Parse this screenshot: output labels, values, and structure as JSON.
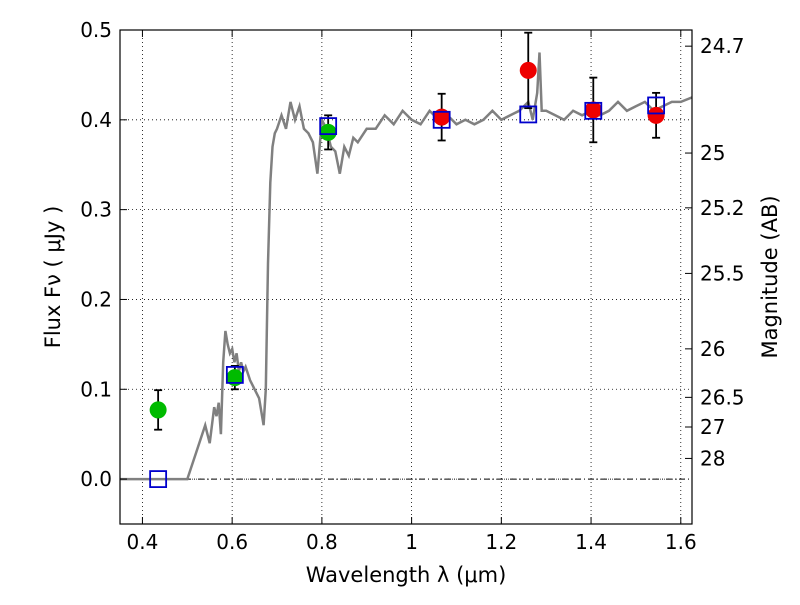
{
  "chart_data": {
    "type": "scatter",
    "xlabel": "Wavelength  λ (μm)",
    "ylabel": "Flux  Fν  ( μJy )",
    "ylabel_right": "Magnitude (AB)",
    "xlim": [
      0.35,
      1.625
    ],
    "ylim": [
      -0.05,
      0.5
    ],
    "x_ticks": [
      0.4,
      0.6,
      0.8,
      1.0,
      1.2,
      1.4,
      1.6
    ],
    "x_tick_labels": [
      "0.4",
      "0.6",
      "0.8",
      "1",
      "1.2",
      "1.4",
      "1.6"
    ],
    "y_ticks": [
      0.0,
      0.1,
      0.2,
      0.3,
      0.4,
      0.5
    ],
    "y_tick_labels": [
      "0.0",
      "0.1",
      "0.2",
      "0.3",
      "0.4",
      "0.5"
    ],
    "right_ticks": [
      {
        "label": "24.7",
        "flux": 0.482
      },
      {
        "label": "25",
        "flux": 0.363
      },
      {
        "label": "25.2",
        "flux": 0.302
      },
      {
        "label": "25.5",
        "flux": 0.229
      },
      {
        "label": "26",
        "flux": 0.145
      },
      {
        "label": "26.5",
        "flux": 0.091
      },
      {
        "label": "27",
        "flux": 0.058
      },
      {
        "label": "28",
        "flux": 0.023
      }
    ],
    "grid": true,
    "colors": {
      "model": "#808080",
      "measured_green": "#00bb00",
      "measured_red": "#ee0000",
      "synthetic": "#0000cc",
      "errorbar": "#000000",
      "zero_line": "#000000"
    },
    "series": [
      {
        "name": "model spectrum",
        "kind": "line",
        "x": [
          0.35,
          0.5,
          0.52,
          0.54,
          0.55,
          0.56,
          0.565,
          0.57,
          0.575,
          0.58,
          0.585,
          0.59,
          0.595,
          0.6,
          0.605,
          0.61,
          0.615,
          0.62,
          0.625,
          0.63,
          0.64,
          0.65,
          0.66,
          0.67,
          0.675,
          0.68,
          0.685,
          0.69,
          0.695,
          0.7,
          0.71,
          0.72,
          0.73,
          0.74,
          0.75,
          0.76,
          0.77,
          0.78,
          0.79,
          0.8,
          0.81,
          0.82,
          0.83,
          0.84,
          0.85,
          0.86,
          0.87,
          0.88,
          0.9,
          0.92,
          0.94,
          0.96,
          0.98,
          1.0,
          1.02,
          1.04,
          1.06,
          1.08,
          1.1,
          1.12,
          1.14,
          1.16,
          1.18,
          1.2,
          1.22,
          1.24,
          1.26,
          1.27,
          1.28,
          1.285,
          1.29,
          1.3,
          1.32,
          1.34,
          1.36,
          1.38,
          1.4,
          1.42,
          1.44,
          1.46,
          1.48,
          1.5,
          1.52,
          1.54,
          1.56,
          1.58,
          1.6,
          1.625
        ],
        "y": [
          0.0,
          0.0,
          0.03,
          0.06,
          0.04,
          0.08,
          0.07,
          0.085,
          0.05,
          0.13,
          0.165,
          0.15,
          0.14,
          0.145,
          0.13,
          0.14,
          0.12,
          0.13,
          0.12,
          0.125,
          0.11,
          0.1,
          0.09,
          0.06,
          0.1,
          0.24,
          0.33,
          0.37,
          0.385,
          0.39,
          0.405,
          0.39,
          0.42,
          0.4,
          0.415,
          0.39,
          0.385,
          0.375,
          0.34,
          0.4,
          0.39,
          0.37,
          0.365,
          0.34,
          0.37,
          0.36,
          0.38,
          0.375,
          0.39,
          0.39,
          0.405,
          0.395,
          0.41,
          0.4,
          0.395,
          0.41,
          0.4,
          0.405,
          0.395,
          0.4,
          0.395,
          0.4,
          0.41,
          0.4,
          0.405,
          0.41,
          0.42,
          0.4,
          0.43,
          0.475,
          0.41,
          0.41,
          0.405,
          0.4,
          0.41,
          0.405,
          0.41,
          0.405,
          0.41,
          0.42,
          0.41,
          0.415,
          0.42,
          0.41,
          0.415,
          0.42,
          0.42,
          0.425
        ]
      },
      {
        "name": "measured fluxes",
        "kind": "points",
        "x": [
          0.435,
          0.606,
          0.814,
          1.067,
          1.26,
          1.405,
          1.545
        ],
        "y": [
          0.077,
          0.113,
          0.386,
          0.403,
          0.455,
          0.411,
          0.405
        ],
        "yerr": [
          0.022,
          0.013,
          0.019,
          0.026,
          0.042,
          0.036,
          0.025
        ],
        "colors": [
          "green",
          "green",
          "green",
          "red",
          "red",
          "red",
          "red"
        ]
      },
      {
        "name": "model synthetic fluxes",
        "kind": "open-squares",
        "x": [
          0.435,
          0.606,
          0.814,
          1.067,
          1.26,
          1.405,
          1.545
        ],
        "y": [
          0.0,
          0.116,
          0.393,
          0.4,
          0.406,
          0.41,
          0.416
        ]
      }
    ]
  }
}
